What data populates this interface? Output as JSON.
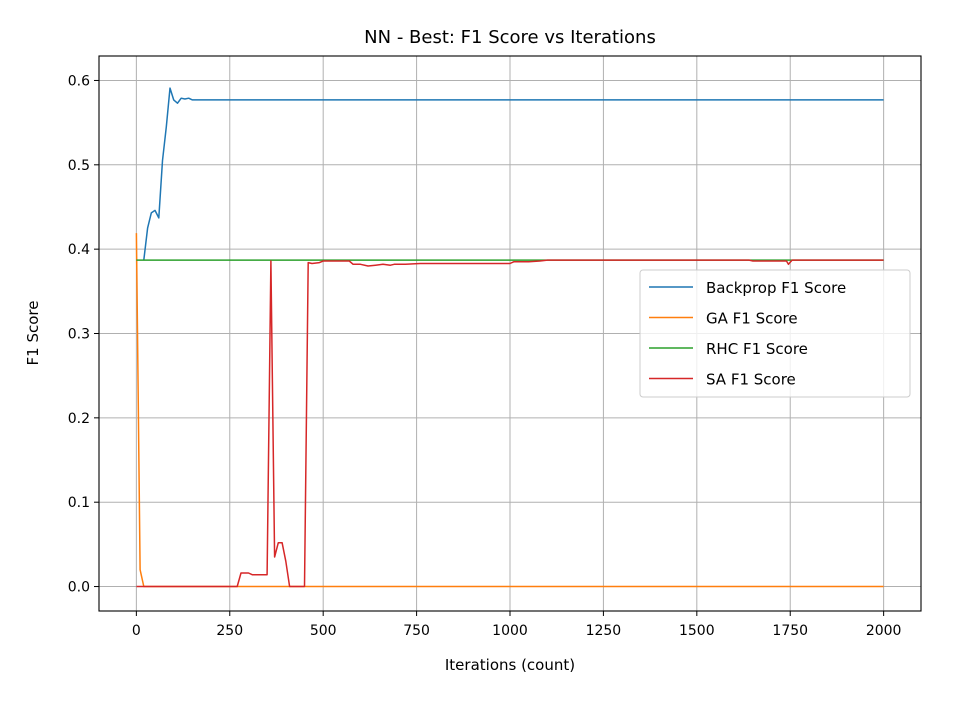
{
  "chart_data": {
    "type": "line",
    "title": "NN - Best: F1 Score vs Iterations",
    "xlabel": "Iterations (count)",
    "ylabel": "F1 Score",
    "xlim": [
      -100,
      2100
    ],
    "ylim": [
      -0.029,
      0.629
    ],
    "xticks": [
      0,
      250,
      500,
      750,
      1000,
      1250,
      1500,
      1750,
      2000
    ],
    "xtick_labels": [
      "0",
      "250",
      "500",
      "750",
      "1000",
      "1250",
      "1500",
      "1750",
      "2000"
    ],
    "yticks": [
      0.0,
      0.1,
      0.2,
      0.3,
      0.4,
      0.5,
      0.6
    ],
    "ytick_labels": [
      "0.0",
      "0.1",
      "0.2",
      "0.3",
      "0.4",
      "0.5",
      "0.6"
    ],
    "grid": true,
    "legend_position": "center-right",
    "series": [
      {
        "name": "Backprop F1 Score",
        "color": "#1f77b4",
        "points": [
          [
            20,
            0.387
          ],
          [
            30,
            0.425
          ],
          [
            40,
            0.443
          ],
          [
            50,
            0.446
          ],
          [
            60,
            0.437
          ],
          [
            70,
            0.505
          ],
          [
            80,
            0.545
          ],
          [
            90,
            0.591
          ],
          [
            100,
            0.577
          ],
          [
            110,
            0.573
          ],
          [
            120,
            0.579
          ],
          [
            130,
            0.578
          ],
          [
            140,
            0.579
          ],
          [
            150,
            0.577
          ],
          [
            200,
            0.577
          ],
          [
            500,
            0.577
          ],
          [
            1000,
            0.577
          ],
          [
            1500,
            0.577
          ],
          [
            2000,
            0.577
          ]
        ]
      },
      {
        "name": "GA F1 Score",
        "color": "#ff7f0e",
        "points": [
          [
            0,
            0.419
          ],
          [
            10,
            0.02
          ],
          [
            20,
            0.0
          ],
          [
            100,
            0.0
          ],
          [
            500,
            0.0
          ],
          [
            1000,
            0.0
          ],
          [
            1500,
            0.0
          ],
          [
            2000,
            0.0
          ]
        ]
      },
      {
        "name": "RHC F1 Score",
        "color": "#2ca02c",
        "points": [
          [
            0,
            0.387
          ],
          [
            500,
            0.387
          ],
          [
            1000,
            0.387
          ],
          [
            1500,
            0.387
          ],
          [
            2000,
            0.387
          ]
        ]
      },
      {
        "name": "SA F1 Score",
        "color": "#d62728",
        "points": [
          [
            0,
            0.0
          ],
          [
            100,
            0.0
          ],
          [
            200,
            0.0
          ],
          [
            270,
            0.0
          ],
          [
            280,
            0.016
          ],
          [
            300,
            0.016
          ],
          [
            310,
            0.014
          ],
          [
            330,
            0.014
          ],
          [
            350,
            0.014
          ],
          [
            360,
            0.386
          ],
          [
            370,
            0.035
          ],
          [
            380,
            0.052
          ],
          [
            390,
            0.052
          ],
          [
            400,
            0.03
          ],
          [
            410,
            0.0
          ],
          [
            430,
            0.0
          ],
          [
            450,
            0.0
          ],
          [
            460,
            0.384
          ],
          [
            470,
            0.383
          ],
          [
            490,
            0.384
          ],
          [
            500,
            0.386
          ],
          [
            520,
            0.386
          ],
          [
            550,
            0.386
          ],
          [
            570,
            0.386
          ],
          [
            580,
            0.382
          ],
          [
            600,
            0.382
          ],
          [
            620,
            0.38
          ],
          [
            640,
            0.381
          ],
          [
            660,
            0.382
          ],
          [
            680,
            0.381
          ],
          [
            690,
            0.382
          ],
          [
            720,
            0.382
          ],
          [
            760,
            0.383
          ],
          [
            800,
            0.383
          ],
          [
            900,
            0.383
          ],
          [
            1000,
            0.383
          ],
          [
            1010,
            0.385
          ],
          [
            1050,
            0.385
          ],
          [
            1080,
            0.386
          ],
          [
            1100,
            0.387
          ],
          [
            1300,
            0.387
          ],
          [
            1500,
            0.387
          ],
          [
            1640,
            0.387
          ],
          [
            1650,
            0.386
          ],
          [
            1700,
            0.386
          ],
          [
            1740,
            0.386
          ],
          [
            1745,
            0.382
          ],
          [
            1755,
            0.387
          ],
          [
            1800,
            0.387
          ],
          [
            2000,
            0.387
          ]
        ]
      }
    ]
  }
}
